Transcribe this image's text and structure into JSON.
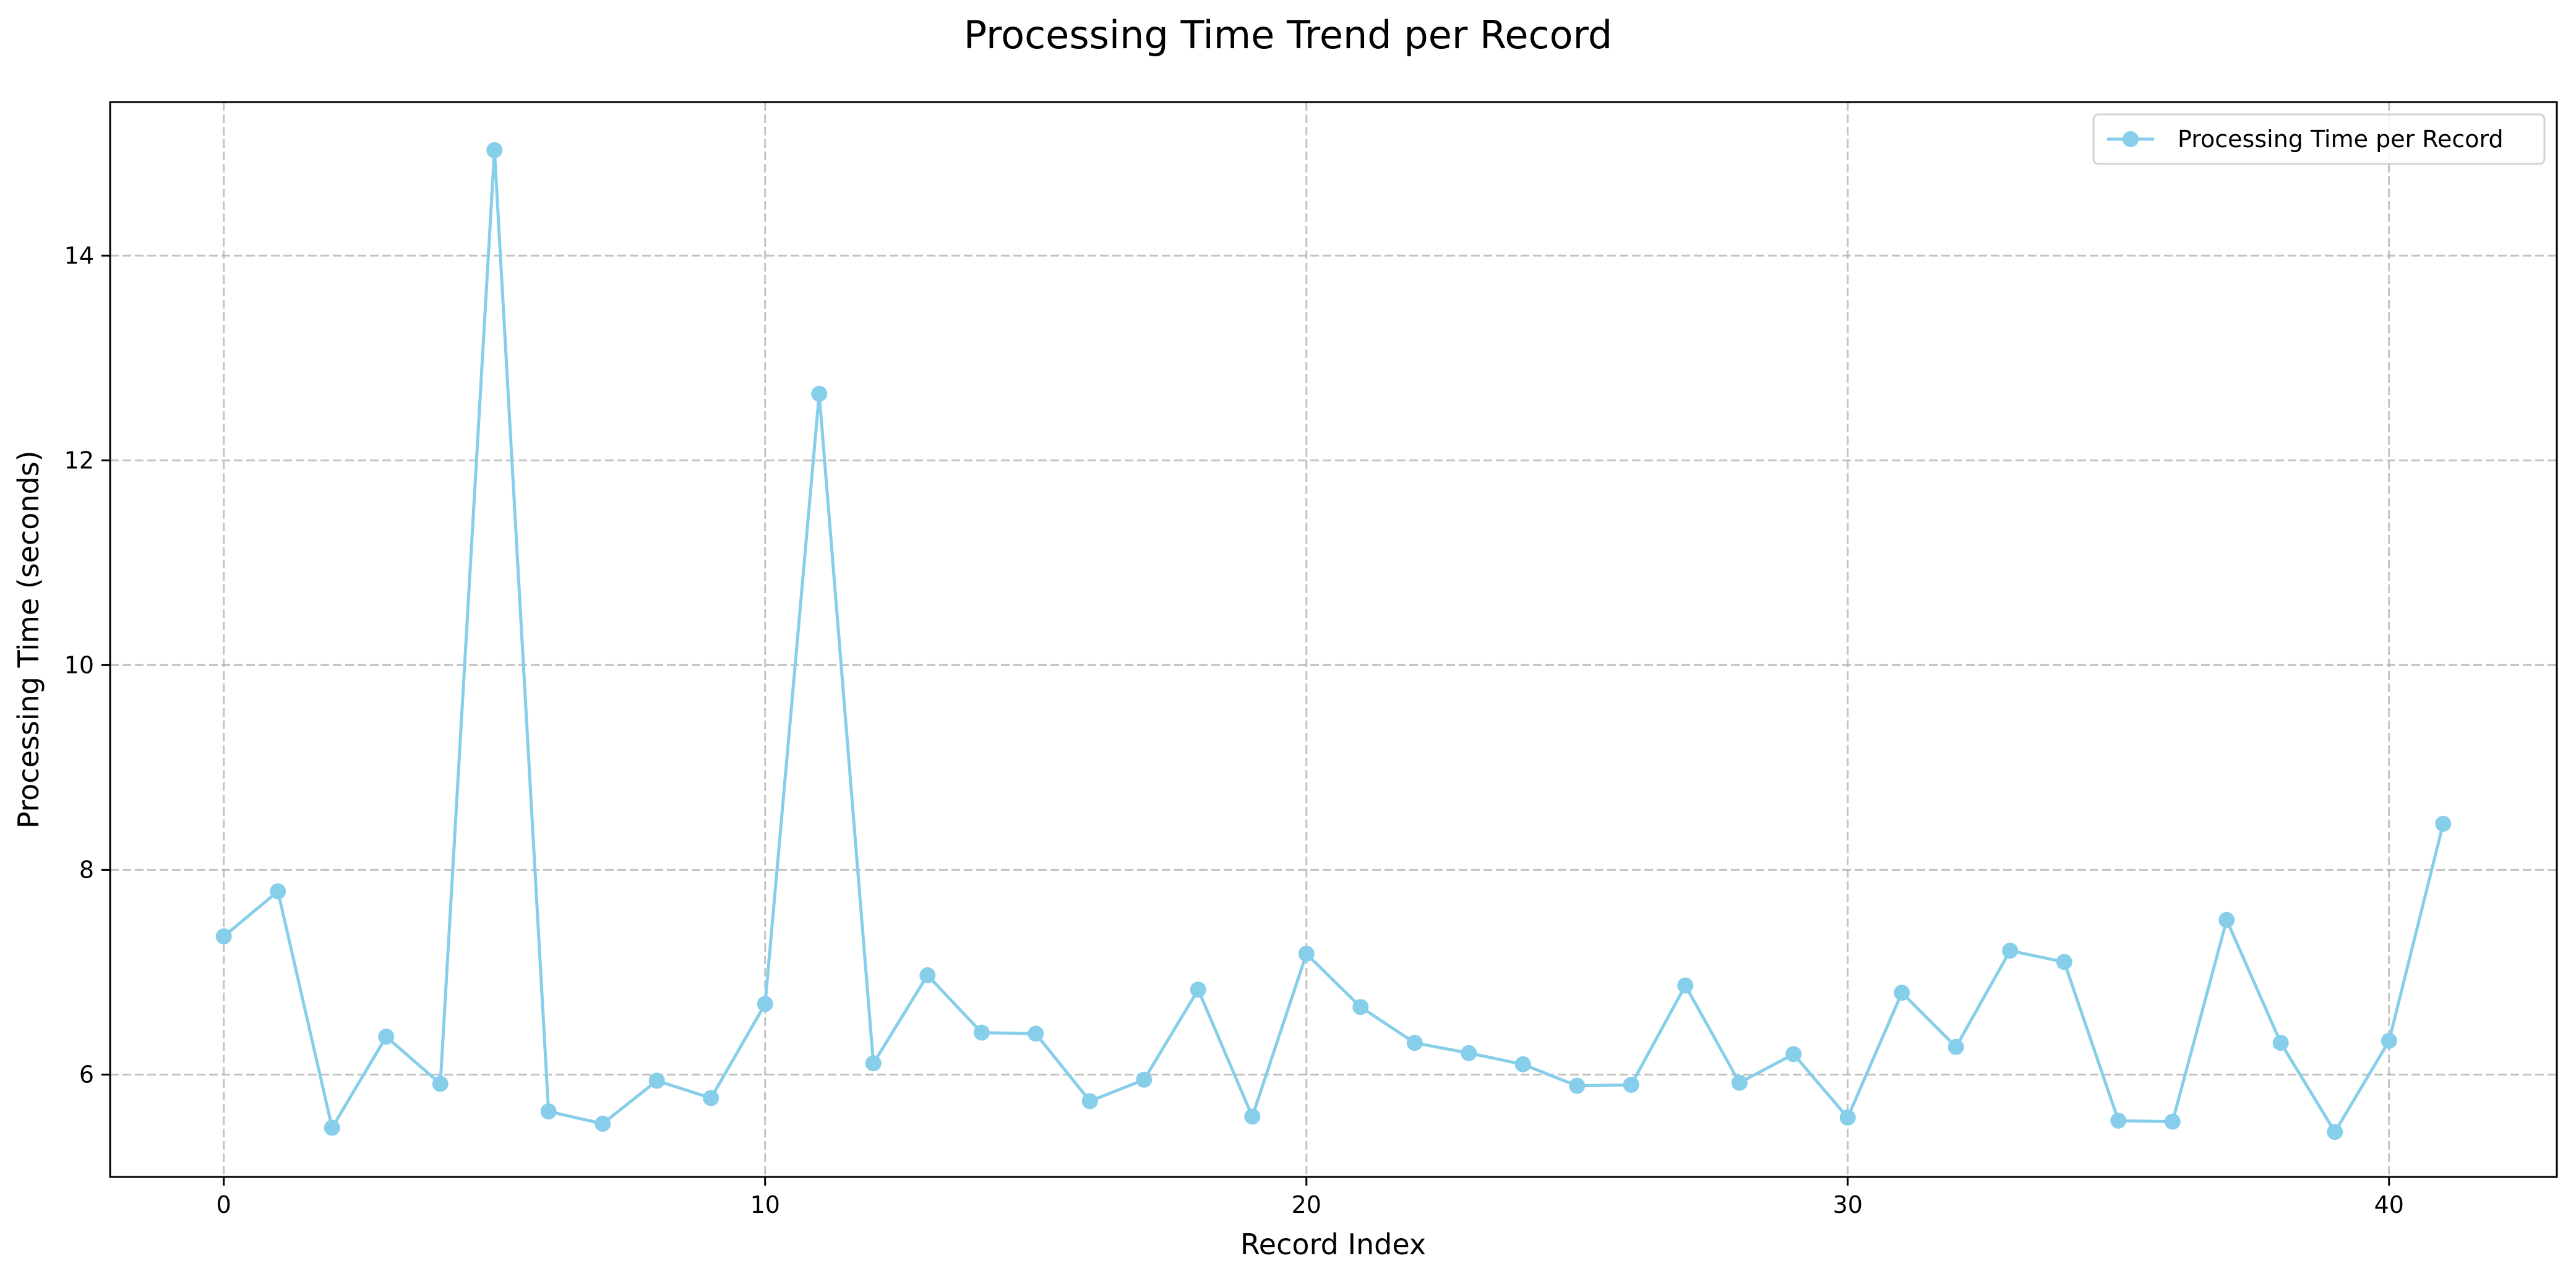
{
  "chart_data": {
    "type": "line",
    "title": "Processing Time Trend per Record",
    "xlabel": "Record Index",
    "ylabel": "Processing Time (seconds)",
    "xlim": [
      -2.1,
      43.1
    ],
    "ylim": [
      5.0,
      15.5
    ],
    "xticks": [
      0,
      10,
      20,
      30,
      40
    ],
    "yticks": [
      6,
      8,
      10,
      12,
      14
    ],
    "grid": true,
    "legend_position": "top-right",
    "series": [
      {
        "name": "Processing Time per Record",
        "color": "#87ceeb",
        "marker": "circle",
        "x": [
          0,
          1,
          2,
          3,
          4,
          5,
          6,
          7,
          8,
          9,
          10,
          11,
          12,
          13,
          14,
          15,
          16,
          17,
          18,
          19,
          20,
          21,
          22,
          23,
          24,
          25,
          26,
          27,
          28,
          29,
          30,
          31,
          32,
          33,
          34,
          35,
          36,
          37,
          38,
          39,
          40,
          41
        ],
        "values": [
          7.35,
          7.79,
          5.48,
          6.37,
          5.91,
          15.03,
          5.64,
          5.52,
          5.94,
          5.77,
          6.69,
          12.65,
          6.11,
          6.97,
          6.41,
          6.4,
          5.74,
          5.95,
          6.83,
          5.59,
          7.18,
          6.66,
          6.31,
          6.21,
          6.1,
          5.89,
          5.9,
          6.87,
          5.92,
          6.2,
          5.58,
          6.8,
          6.27,
          7.21,
          7.1,
          5.55,
          5.54,
          7.51,
          6.31,
          5.44,
          6.33,
          8.45
        ]
      }
    ]
  }
}
